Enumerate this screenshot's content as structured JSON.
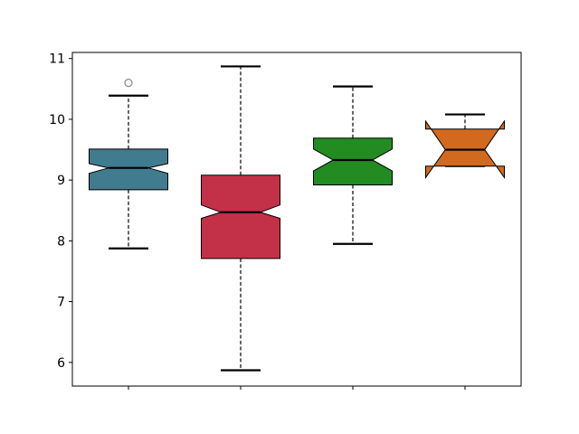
{
  "chart_data": {
    "type": "box",
    "notched": true,
    "title": "",
    "xlabel": "",
    "ylabel": "",
    "xlim": [
      0.5,
      4.5
    ],
    "ylim": [
      5.61,
      11.1
    ],
    "yticks": [
      6,
      7,
      8,
      9,
      10,
      11
    ],
    "ytick_labels": [
      "6",
      "7",
      "8",
      "9",
      "10",
      "11"
    ],
    "xtick_positions": [
      1,
      2,
      3,
      4
    ],
    "xtick_labels": [
      "",
      "",
      "",
      ""
    ],
    "grid": false,
    "boxes": [
      {
        "pos": 1,
        "color": "#417b8f",
        "whislo": 7.875,
        "q1": 8.84,
        "notch_lo": 9.11,
        "med": 9.2,
        "notch_hi": 9.27,
        "q3": 9.51,
        "whishi": 10.39,
        "fliers": [
          10.6
        ]
      },
      {
        "pos": 2,
        "color": "#c33148",
        "whislo": 5.87,
        "q1": 7.71,
        "notch_lo": 8.37,
        "med": 8.47,
        "notch_hi": 8.59,
        "q3": 9.08,
        "whishi": 10.87,
        "fliers": []
      },
      {
        "pos": 3,
        "color": "#228b22",
        "whislo": 7.95,
        "q1": 8.92,
        "notch_lo": 9.15,
        "med": 9.33,
        "notch_hi": 9.51,
        "q3": 9.69,
        "whishi": 10.54,
        "fliers": []
      },
      {
        "pos": 4,
        "color": "#d2691e",
        "whislo": 9.23,
        "q1": 9.23,
        "notch_lo": 9.04,
        "med": 9.5,
        "notch_hi": 9.97,
        "q3": 9.84,
        "whishi": 10.08,
        "fliers": []
      }
    ]
  }
}
